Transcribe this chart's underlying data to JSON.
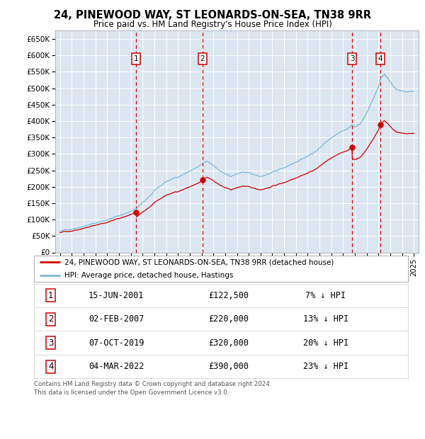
{
  "title": "24, PINEWOOD WAY, ST LEONARDS-ON-SEA, TN38 9RR",
  "subtitle": "Price paid vs. HM Land Registry's House Price Index (HPI)",
  "ylim": [
    0,
    675000
  ],
  "yticks": [
    0,
    50000,
    100000,
    150000,
    200000,
    250000,
    300000,
    350000,
    400000,
    450000,
    500000,
    550000,
    600000,
    650000
  ],
  "ytick_labels": [
    "£0",
    "£50K",
    "£100K",
    "£150K",
    "£200K",
    "£250K",
    "£300K",
    "£350K",
    "£400K",
    "£450K",
    "£500K",
    "£550K",
    "£600K",
    "£650K"
  ],
  "xlim_start": 1994.6,
  "xlim_end": 2025.4,
  "background_color": "#ffffff",
  "plot_bg_color": "#dce6f1",
  "grid_color": "#ffffff",
  "hpi_color": "#7bb8d8",
  "price_color": "#cc0000",
  "dashed_line_color": "#cc0000",
  "transactions": [
    {
      "num": 1,
      "date_str": "15-JUN-2001",
      "year": 2001.46,
      "price": 122500,
      "pct": "7%"
    },
    {
      "num": 2,
      "date_str": "02-FEB-2007",
      "year": 2007.09,
      "price": 220000,
      "pct": "13%"
    },
    {
      "num": 3,
      "date_str": "07-OCT-2019",
      "year": 2019.77,
      "price": 320000,
      "pct": "20%"
    },
    {
      "num": 4,
      "date_str": "04-MAR-2022",
      "year": 2022.17,
      "price": 390000,
      "pct": "23%"
    }
  ],
  "legend_label_price": "24, PINEWOOD WAY, ST LEONARDS-ON-SEA, TN38 9RR (detached house)",
  "legend_label_hpi": "HPI: Average price, detached house, Hastings",
  "footer1": "Contains HM Land Registry data © Crown copyright and database right 2024.",
  "footer2": "This data is licensed under the Open Government Licence v3.0.",
  "table_rows": [
    [
      "1",
      "15-JUN-2001",
      "£122,500",
      "7% ↓ HPI"
    ],
    [
      "2",
      "02-FEB-2007",
      "£220,000",
      "13% ↓ HPI"
    ],
    [
      "3",
      "07-OCT-2019",
      "£320,000",
      "20% ↓ HPI"
    ],
    [
      "4",
      "04-MAR-2022",
      "£390,000",
      "23% ↓ HPI"
    ]
  ]
}
